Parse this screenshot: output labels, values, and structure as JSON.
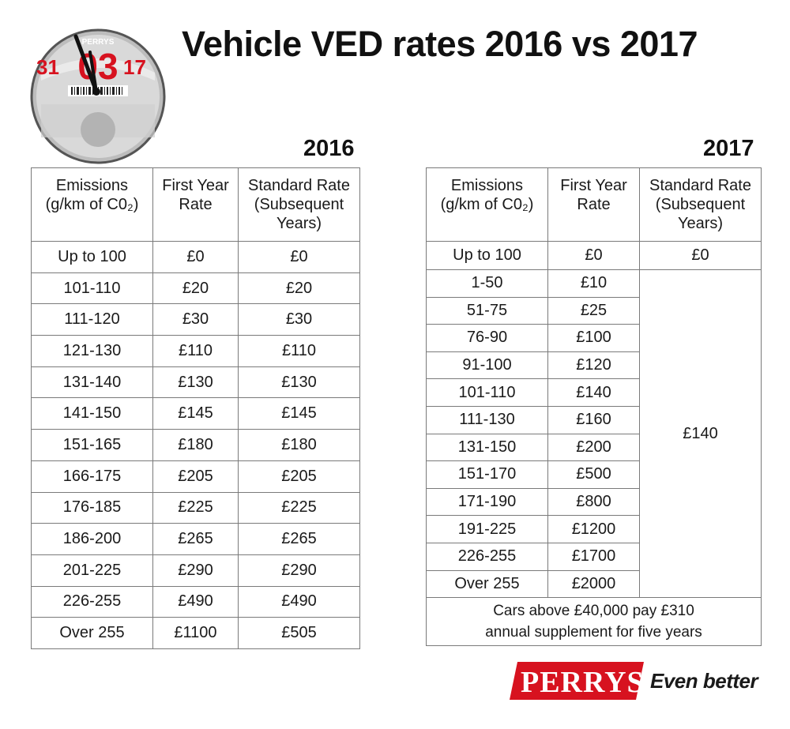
{
  "badge": {
    "top_text": "PERRYS",
    "left_day": "31",
    "month": "03",
    "right_year": "17"
  },
  "title": "Vehicle VED rates 2016 vs 2017",
  "table_2016": {
    "year_label": "2016",
    "headers": [
      [
        "Emissions",
        "(g/km of C0₂)"
      ],
      [
        "First Year",
        "Rate"
      ],
      [
        "Standard Rate",
        "(Subsequent",
        "Years)"
      ]
    ],
    "rows": [
      [
        "Up to 100",
        "£0",
        "£0"
      ],
      [
        "101-110",
        "£20",
        "£20"
      ],
      [
        "111-120",
        "£30",
        "£30"
      ],
      [
        "121-130",
        "£110",
        "£110"
      ],
      [
        "131-140",
        "£130",
        "£130"
      ],
      [
        "141-150",
        "£145",
        "£145"
      ],
      [
        "151-165",
        "£180",
        "£180"
      ],
      [
        "166-175",
        "£205",
        "£205"
      ],
      [
        "176-185",
        "£225",
        "£225"
      ],
      [
        "186-200",
        "£265",
        "£265"
      ],
      [
        "201-225",
        "£290",
        "£290"
      ],
      [
        "226-255",
        "£490",
        "£490"
      ],
      [
        "Over 255",
        "£1100",
        "£505"
      ]
    ]
  },
  "table_2017": {
    "year_label": "2017",
    "headers": [
      [
        "Emissions",
        "(g/km of C0₂)"
      ],
      [
        "First Year",
        "Rate"
      ],
      [
        "Standard Rate",
        "(Subsequent",
        "Years)"
      ]
    ],
    "first_row": [
      "Up to 100",
      "£0",
      "£0"
    ],
    "bands": [
      [
        "1-50",
        "£10"
      ],
      [
        "51-75",
        "£25"
      ],
      [
        "76-90",
        "£100"
      ],
      [
        "91-100",
        "£120"
      ],
      [
        "101-110",
        "£140"
      ],
      [
        "111-130",
        "£160"
      ],
      [
        "131-150",
        "£200"
      ],
      [
        "151-170",
        "£500"
      ],
      [
        "171-190",
        "£800"
      ],
      [
        "191-225",
        "£1200"
      ],
      [
        "226-255",
        "£1700"
      ],
      [
        "Over 255",
        "£2000"
      ]
    ],
    "standard_rate_merged": "£140",
    "note_line1": "Cars above £40,000 pay £310",
    "note_line2": "annual supplement for five years"
  },
  "logo": {
    "brand": "PERRYS",
    "tagline": "Even better",
    "brand_color": "#d7121f"
  }
}
